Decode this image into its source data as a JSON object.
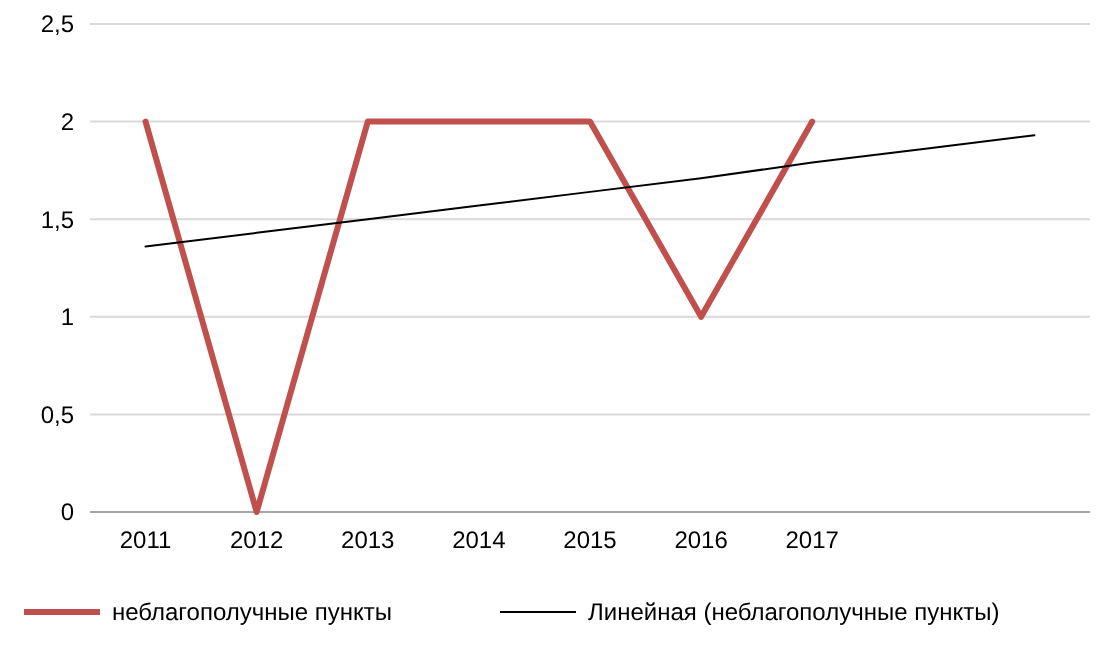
{
  "chart_data": {
    "type": "line",
    "categories": [
      "2011",
      "2012",
      "2013",
      "2014",
      "2015",
      "2016",
      "2017",
      null,
      null
    ],
    "series": [
      {
        "name": "неблагополучные пункты",
        "color": "#c0504d",
        "values": [
          2,
          0,
          2,
          2,
          2,
          1,
          2,
          null,
          null
        ]
      },
      {
        "name": "Линейная (неблагополучные пункты)",
        "color": "#000000",
        "values": [
          1.36,
          1.43,
          1.5,
          1.57,
          1.64,
          1.71,
          1.79,
          1.86,
          1.93
        ]
      }
    ],
    "ylim": [
      0,
      2.5
    ],
    "yticks": [
      0,
      {
        "value": 0.5,
        "label": "0,5"
      },
      1,
      {
        "value": 1.5,
        "label": "1,5"
      },
      2,
      {
        "value": 2.5,
        "label": "2,5"
      }
    ],
    "grid": "y",
    "legend": "bottom",
    "marker": "none",
    "line_style": "solid"
  }
}
